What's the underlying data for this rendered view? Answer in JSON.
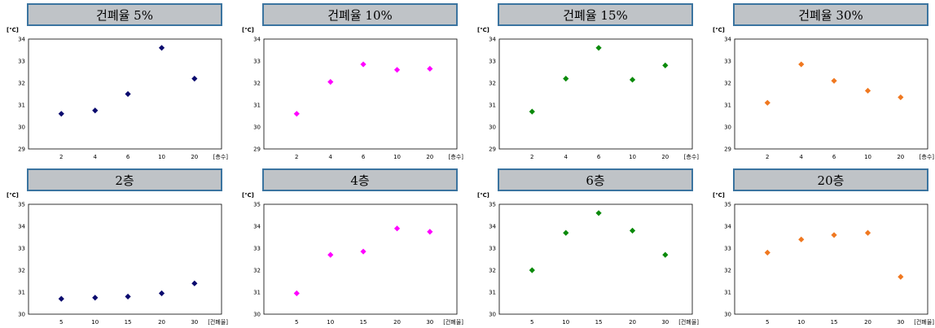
{
  "chart_data": [
    {
      "type": "scatter",
      "title": "건폐율 5%",
      "yunit": "[℃]",
      "xunit": "[층수]",
      "categories": [
        "2",
        "4",
        "6",
        "10",
        "20"
      ],
      "values": [
        30.6,
        30.75,
        31.5,
        33.6,
        32.2
      ],
      "ylim": [
        29,
        34
      ],
      "yticks": [
        "29",
        "30",
        "31",
        "32",
        "33",
        "34"
      ],
      "color": "#0a0a6e",
      "grid": false
    },
    {
      "type": "scatter",
      "title": "건폐율 10%",
      "yunit": "[℃]",
      "xunit": "[층수]",
      "categories": [
        "2",
        "4",
        "6",
        "10",
        "20"
      ],
      "values": [
        30.6,
        32.05,
        32.85,
        32.6,
        32.65
      ],
      "ylim": [
        29,
        34
      ],
      "yticks": [
        "29",
        "30",
        "31",
        "32",
        "33",
        "34"
      ],
      "color": "#ff00ff",
      "grid": false
    },
    {
      "type": "scatter",
      "title": "건폐율 15%",
      "yunit": "[℃]",
      "xunit": "[층수]",
      "categories": [
        "2",
        "4",
        "6",
        "10",
        "20"
      ],
      "values": [
        30.7,
        32.2,
        33.6,
        32.15,
        32.8
      ],
      "ylim": [
        29,
        34
      ],
      "yticks": [
        "29",
        "30",
        "31",
        "32",
        "33",
        "34"
      ],
      "color": "#0a8a0a",
      "grid": false
    },
    {
      "type": "scatter",
      "title": "건폐율 30%",
      "yunit": "[℃]",
      "xunit": "[층수]",
      "categories": [
        "2",
        "4",
        "6",
        "10",
        "20"
      ],
      "values": [
        31.1,
        32.85,
        32.1,
        31.65,
        31.35
      ],
      "ylim": [
        29,
        34
      ],
      "yticks": [
        "29",
        "30",
        "31",
        "32",
        "33",
        "34"
      ],
      "color": "#f07820",
      "grid": false
    },
    {
      "type": "scatter",
      "title": "2층",
      "yunit": "[℃]",
      "xunit": "[건폐율]",
      "categories": [
        "5",
        "10",
        "15",
        "20",
        "30"
      ],
      "values": [
        30.7,
        30.75,
        30.8,
        30.95,
        31.4
      ],
      "ylim": [
        30,
        35
      ],
      "yticks": [
        "30",
        "31",
        "32",
        "33",
        "34",
        "35"
      ],
      "color": "#0a0a6e",
      "grid": false
    },
    {
      "type": "scatter",
      "title": "4층",
      "yunit": "[℃]",
      "xunit": "[건폐율]",
      "categories": [
        "5",
        "10",
        "15",
        "20",
        "30"
      ],
      "values": [
        30.95,
        32.7,
        32.85,
        33.9,
        33.75
      ],
      "ylim": [
        30,
        35
      ],
      "yticks": [
        "30",
        "31",
        "32",
        "33",
        "34",
        "35"
      ],
      "color": "#ff00ff",
      "grid": false
    },
    {
      "type": "scatter",
      "title": "6층",
      "yunit": "[℃]",
      "xunit": "[건폐율]",
      "categories": [
        "5",
        "10",
        "15",
        "20",
        "30"
      ],
      "values": [
        32.0,
        33.7,
        34.6,
        33.8,
        32.7
      ],
      "ylim": [
        30,
        35
      ],
      "yticks": [
        "30",
        "31",
        "32",
        "33",
        "34",
        "35"
      ],
      "color": "#0a8a0a",
      "grid": false
    },
    {
      "type": "scatter",
      "title": "20층",
      "yunit": "[℃]",
      "xunit": "[건폐율]",
      "categories": [
        "5",
        "10",
        "15",
        "20",
        "30"
      ],
      "values": [
        32.8,
        33.4,
        33.6,
        33.7,
        31.7
      ],
      "ylim": [
        30,
        35
      ],
      "yticks": [
        "30",
        "31",
        "32",
        "33",
        "34",
        "35"
      ],
      "color": "#f07820",
      "grid": false
    }
  ]
}
